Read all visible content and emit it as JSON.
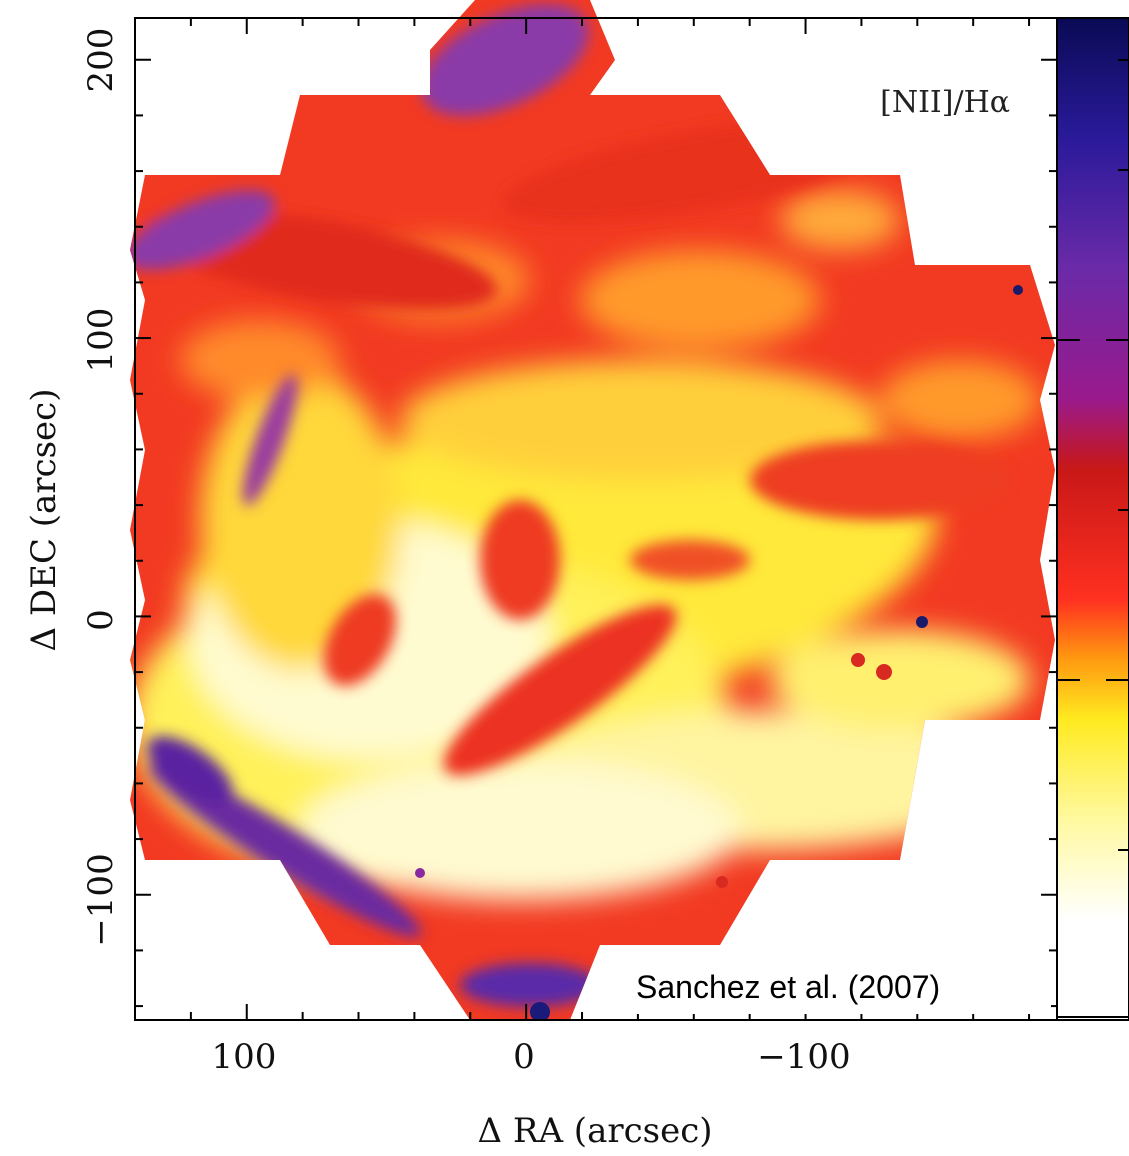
{
  "chart_data": {
    "type": "heatmap",
    "title": "[NII]/Hα",
    "xlabel": "Δ RA (arcsec)",
    "ylabel": "Δ DEC (arcsec)",
    "xlim": [
      140,
      -190
    ],
    "ylim": [
      -145,
      215
    ],
    "x_ticks": [
      100,
      0,
      -100
    ],
    "x_tick_labels": [
      "100",
      "0",
      "−100"
    ],
    "y_ticks": [
      200,
      100,
      0,
      -100
    ],
    "y_tick_labels": [
      "200",
      "100",
      "0",
      "−100"
    ],
    "colorbar": {
      "colormap": [
        "#ffffff",
        "#fff9a0",
        "#ffea20",
        "#ff9a10",
        "#ff3020",
        "#c81818",
        "#9a1a8c",
        "#6a2aa8",
        "#2a1a9a",
        "#0a0a55"
      ],
      "ticks_labeled": false
    },
    "credit": "Sanchez et al. (2007)"
  }
}
